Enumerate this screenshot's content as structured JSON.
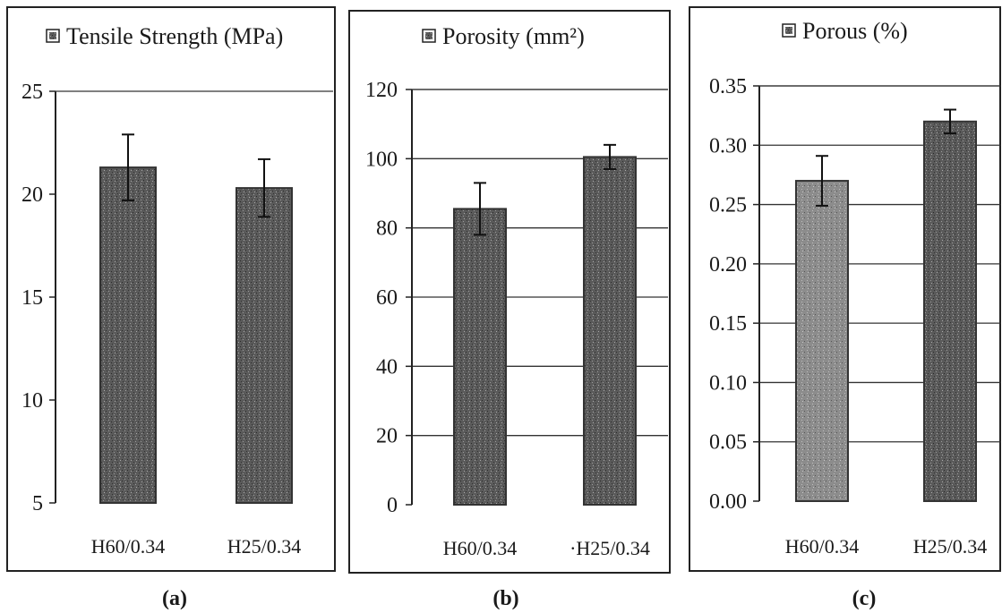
{
  "chart_data": [
    {
      "type": "bar",
      "panel_label": "(a)",
      "legend": "Tensile Strength (MPa)",
      "categories": [
        "H60/0.34",
        "H25/0.34"
      ],
      "values": [
        21.3,
        20.3
      ],
      "errors": [
        1.6,
        1.4
      ],
      "ylim": [
        5,
        25
      ],
      "yticks": [
        "5",
        "10",
        "15",
        "20",
        "25"
      ],
      "grid": false,
      "legend_position": "top"
    },
    {
      "type": "bar",
      "panel_label": "(b)",
      "legend": "Porosity (mm²)",
      "categories": [
        "H60/0.34",
        "·H25/0.34"
      ],
      "values": [
        85.5,
        100.5
      ],
      "errors": [
        7.5,
        3.5
      ],
      "ylim": [
        0,
        120
      ],
      "yticks": [
        "0",
        "20",
        "40",
        "60",
        "80",
        "100",
        "120"
      ],
      "grid": true,
      "legend_position": "top"
    },
    {
      "type": "bar",
      "panel_label": "(c)",
      "legend": "Porous (%)",
      "categories": [
        "H60/0.34",
        "H25/0.34"
      ],
      "values": [
        0.27,
        0.32
      ],
      "errors": [
        0.021,
        0.01
      ],
      "ylim": [
        0,
        0.35
      ],
      "yticks": [
        "0.00",
        "0.05",
        "0.10",
        "0.15",
        "0.20",
        "0.25",
        "0.30",
        "0.35"
      ],
      "grid": true,
      "legend_position": "top"
    }
  ],
  "colors": {
    "bar_dark": "#4a4a4a",
    "bar_light": "#8a8a8a",
    "frame": "#222222"
  }
}
